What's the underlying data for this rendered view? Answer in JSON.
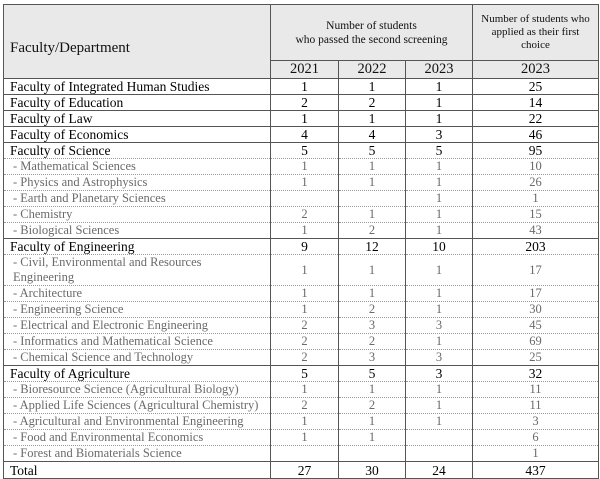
{
  "header": {
    "faculty_label": "Faculty/Department",
    "passed_label_line1": "Number of students",
    "passed_label_line2": "who passed the second screening",
    "applied_label": "Number of students who applied as their first choice",
    "years": [
      "2021",
      "2022",
      "2023",
      "2023"
    ]
  },
  "rows": [
    {
      "type": "fac",
      "name": "Faculty of Integrated Human Studies",
      "v": [
        "1",
        "1",
        "1",
        "25"
      ]
    },
    {
      "type": "fac",
      "name": "Faculty of Education",
      "v": [
        "2",
        "2",
        "1",
        "14"
      ]
    },
    {
      "type": "fac",
      "name": "Faculty of Law",
      "v": [
        "1",
        "1",
        "1",
        "22"
      ]
    },
    {
      "type": "fac",
      "name": "Faculty of Economics",
      "v": [
        "4",
        "4",
        "3",
        "46"
      ]
    },
    {
      "type": "fac",
      "name": "Faculty of Science",
      "v": [
        "5",
        "5",
        "5",
        "95"
      ]
    },
    {
      "type": "sub",
      "name": "- Mathematical Sciences",
      "v": [
        "1",
        "1",
        "1",
        "10"
      ]
    },
    {
      "type": "sub",
      "name": "- Physics and Astrophysics",
      "v": [
        "1",
        "1",
        "1",
        "26"
      ]
    },
    {
      "type": "sub",
      "name": "- Earth and Planetary Sciences",
      "v": [
        "",
        "",
        "1",
        "1"
      ]
    },
    {
      "type": "sub",
      "name": "- Chemistry",
      "v": [
        "2",
        "1",
        "1",
        "15"
      ]
    },
    {
      "type": "sub",
      "name": "- Biological Sciences",
      "v": [
        "1",
        "2",
        "1",
        "43"
      ]
    },
    {
      "type": "fac",
      "name": "Faculty of Engineering",
      "v": [
        "9",
        "12",
        "10",
        "203"
      ]
    },
    {
      "type": "sub",
      "name": "- Civil, Environmental and Resources Engineering",
      "v": [
        "1",
        "1",
        "1",
        "17"
      ]
    },
    {
      "type": "sub",
      "name": "- Architecture",
      "v": [
        "1",
        "1",
        "1",
        "17"
      ]
    },
    {
      "type": "sub",
      "name": "- Engineering Science",
      "v": [
        "1",
        "2",
        "1",
        "30"
      ]
    },
    {
      "type": "sub",
      "name": "- Electrical and Electronic Engineering",
      "v": [
        "2",
        "3",
        "3",
        "45"
      ]
    },
    {
      "type": "sub",
      "name": "- Informatics and Mathematical Science",
      "v": [
        "2",
        "2",
        "1",
        "69"
      ]
    },
    {
      "type": "sub",
      "name": "- Chemical Science and Technology",
      "v": [
        "2",
        "3",
        "3",
        "25"
      ]
    },
    {
      "type": "fac",
      "name": "Faculty of Agriculture",
      "v": [
        "5",
        "5",
        "3",
        "32"
      ]
    },
    {
      "type": "sub",
      "name": "- Bioresource Science (Agricultural Biology)",
      "v": [
        "1",
        "1",
        "1",
        "11"
      ]
    },
    {
      "type": "sub",
      "name": "- Applied Life Sciences (Agricultural Chemistry)",
      "v": [
        "2",
        "2",
        "1",
        "11"
      ]
    },
    {
      "type": "sub",
      "name": "- Agricultural and Environmental Engineering",
      "v": [
        "1",
        "1",
        "1",
        "3"
      ]
    },
    {
      "type": "sub",
      "name": "- Food and Environmental Economics",
      "v": [
        "1",
        "1",
        "",
        "6"
      ]
    },
    {
      "type": "sub",
      "name": "- Forest and Biomaterials Science",
      "v": [
        "",
        "",
        "",
        "1"
      ]
    },
    {
      "type": "total",
      "name": "Total",
      "v": [
        "27",
        "30",
        "24",
        "437"
      ]
    }
  ]
}
